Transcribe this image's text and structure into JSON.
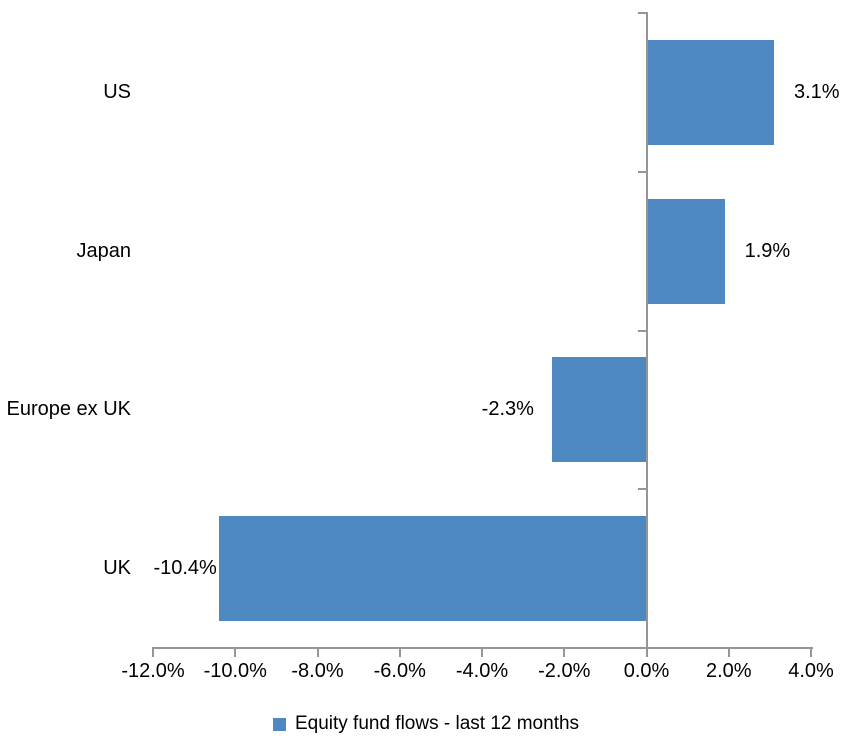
{
  "chart_data": {
    "type": "bar",
    "orientation": "horizontal",
    "title": "",
    "categories": [
      "US",
      "Japan",
      "Europe ex UK",
      "UK"
    ],
    "values": [
      3.1,
      1.9,
      -2.3,
      -10.4
    ],
    "data_labels": [
      "3.1%",
      "1.9%",
      "-2.3%",
      "-10.4%"
    ],
    "series": [
      {
        "name": "Equity fund flows - last 12 months",
        "values": [
          3.1,
          1.9,
          -2.3,
          -10.4
        ]
      }
    ],
    "xlim": [
      -12,
      4
    ],
    "x_ticks": [
      {
        "value": -12,
        "label": "-12.0%"
      },
      {
        "value": -10,
        "label": "-10.0%"
      },
      {
        "value": -8,
        "label": "-8.0%"
      },
      {
        "value": -6,
        "label": "-6.0%"
      },
      {
        "value": -4,
        "label": "-4.0%"
      },
      {
        "value": -2,
        "label": "-2.0%"
      },
      {
        "value": 0,
        "label": "0.0%"
      },
      {
        "value": 2,
        "label": "2.0%"
      },
      {
        "value": 4,
        "label": "4.0%"
      }
    ],
    "grid": false,
    "legend_position": "bottom",
    "legend": {
      "label": "Equity fund flows - last 12 months"
    },
    "colors": {
      "bar": "#4e88c0",
      "axis": "#959595",
      "text": "#000000",
      "background": "#ffffff"
    }
  }
}
